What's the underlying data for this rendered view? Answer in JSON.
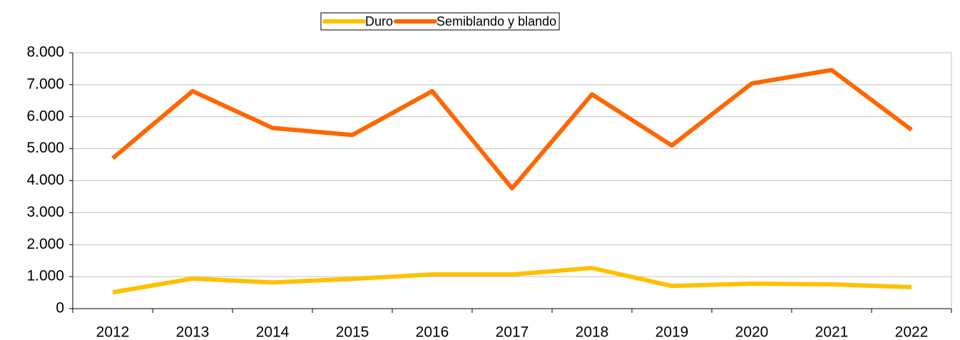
{
  "chart_data": {
    "type": "line",
    "categories": [
      "2012",
      "2013",
      "2014",
      "2015",
      "2016",
      "2017",
      "2018",
      "2019",
      "2020",
      "2021",
      "2022"
    ],
    "series": [
      {
        "name": "Duro",
        "color": "#ffc000",
        "values": [
          510,
          940,
          820,
          930,
          1070,
          1070,
          1270,
          710,
          780,
          760,
          670
        ]
      },
      {
        "name": "Semiblando y blando",
        "color": "#ff6600",
        "values": [
          4700,
          6800,
          5650,
          5430,
          6800,
          3760,
          6700,
          5100,
          7040,
          7460,
          5590
        ]
      }
    ],
    "ylim": [
      0,
      8000
    ],
    "yticks": [
      0,
      {
        "value": 1000,
        "label": "1.000"
      },
      {
        "value": 2000,
        "label": "2.000"
      },
      {
        "value": 3000,
        "label": "3.000"
      },
      {
        "value": 4000,
        "label": "4.000"
      },
      {
        "value": 5000,
        "label": "5.000"
      },
      {
        "value": 6000,
        "label": "6.000"
      },
      {
        "value": 7000,
        "label": "7.000"
      },
      {
        "value": 8000,
        "label": "8.000"
      }
    ],
    "grid": true,
    "legend": "top"
  }
}
